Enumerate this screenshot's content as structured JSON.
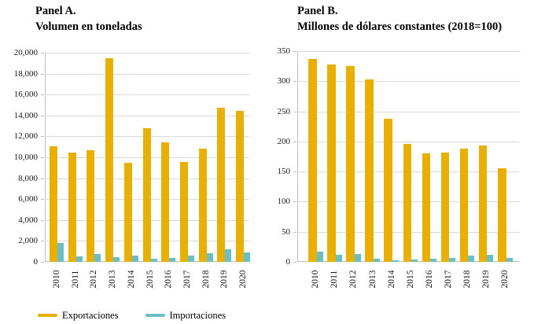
{
  "figure": {
    "panels": [
      {
        "title_line1": "Panel A.",
        "title_line2": "Volumen en toneladas"
      },
      {
        "title_line1": "Panel B.",
        "title_line2": "Millones de dólares constantes (2018=100)"
      }
    ],
    "legend": {
      "items": [
        {
          "label": "Exportaciones",
          "color": "#e8b004"
        },
        {
          "label": "Importaciones",
          "color": "#6bbec3"
        }
      ]
    }
  },
  "colors": {
    "exportaciones": "#e8b004",
    "importaciones": "#6bbec3",
    "gridline": "#d9d9d9",
    "axis": "#bfbfbf"
  },
  "chart_data": [
    {
      "type": "bar",
      "title": "Panel A. Volumen en toneladas",
      "categories": [
        "2010",
        "2011",
        "2012",
        "2013",
        "2014",
        "2015",
        "2016",
        "2017",
        "2018",
        "2019",
        "2020"
      ],
      "series": [
        {
          "name": "Exportaciones",
          "color": "#e8b004",
          "values": [
            11050,
            10450,
            10650,
            19500,
            9450,
            12750,
            11450,
            9550,
            10850,
            14700,
            14400
          ]
        },
        {
          "name": "Importaciones",
          "color": "#6bbec3",
          "values": [
            1800,
            550,
            750,
            450,
            600,
            300,
            400,
            600,
            800,
            1200,
            900
          ]
        }
      ],
      "xlabel": "",
      "ylabel": "",
      "ylim": [
        0,
        20000
      ],
      "ytick_values": [
        0,
        2000,
        4000,
        6000,
        8000,
        10000,
        12000,
        14000,
        16000,
        18000,
        20000
      ],
      "ytick_labels": [
        "0",
        "2,000",
        "4,000",
        "6,000",
        "8,000",
        "10,000",
        "12,000",
        "14,000",
        "16,000",
        "18,000",
        "20,000"
      ],
      "grid": true,
      "legend_position": "bottom-left"
    },
    {
      "type": "bar",
      "title": "Panel B. Millones de dólares constantes (2018=100)",
      "categories": [
        "2010",
        "2011",
        "2012",
        "2013",
        "2014",
        "2015",
        "2016",
        "2017",
        "2018",
        "2019",
        "2020"
      ],
      "series": [
        {
          "name": "Exportaciones",
          "color": "#e8b004",
          "values": [
            337,
            328,
            325,
            303,
            238,
            196,
            180,
            181,
            188,
            193,
            156
          ]
        },
        {
          "name": "Importaciones",
          "color": "#6bbec3",
          "values": [
            17,
            12,
            13,
            5,
            3,
            4,
            5,
            7,
            10,
            12,
            6
          ]
        }
      ],
      "xlabel": "",
      "ylabel": "",
      "ylim": [
        0,
        350
      ],
      "ytick_values": [
        0,
        50,
        100,
        150,
        200,
        250,
        300,
        350
      ],
      "ytick_labels": [
        "0",
        "50",
        "100",
        "150",
        "200",
        "250",
        "300",
        "350"
      ],
      "grid": true,
      "legend_position": "bottom-left"
    }
  ]
}
